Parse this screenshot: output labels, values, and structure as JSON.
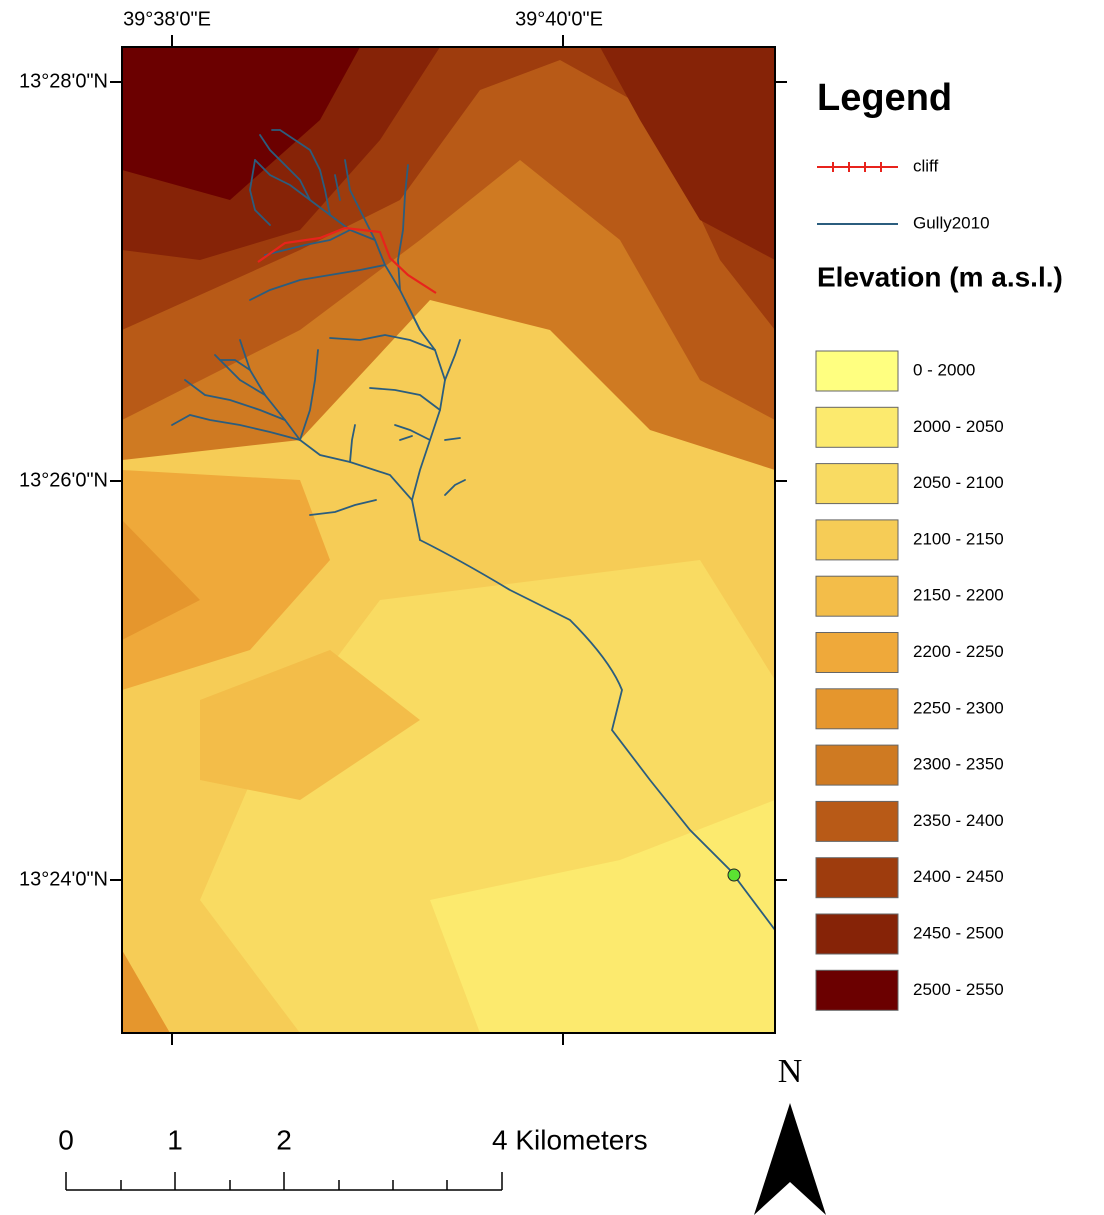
{
  "map": {
    "x_labels": [
      "39°38'0\"E",
      "39°40'0\"E"
    ],
    "y_labels": [
      "13°28'0\"N",
      "13°26'0\"N",
      "13°24'0\"N"
    ]
  },
  "legend": {
    "title": "Legend",
    "layers": [
      {
        "name": "cliff",
        "color": "#e8231c"
      },
      {
        "name": "Gully2010",
        "color": "#2b5d7e"
      }
    ],
    "elevation_title": "Elevation (m a.s.l.)",
    "classes": [
      {
        "label": "0 - 2000",
        "color": "#ffff80"
      },
      {
        "label": "2000 - 2050",
        "color": "#fcea6e"
      },
      {
        "label": "2050 - 2100",
        "color": "#f9db62"
      },
      {
        "label": "2100 - 2150",
        "color": "#f6cc56"
      },
      {
        "label": "2150 - 2200",
        "color": "#f3bd49"
      },
      {
        "label": "2200 - 2250",
        "color": "#efa93a"
      },
      {
        "label": "2250 - 2300",
        "color": "#e5962d"
      },
      {
        "label": "2300 - 2350",
        "color": "#cf7a22"
      },
      {
        "label": "2350 - 2400",
        "color": "#b85a17"
      },
      {
        "label": "2400 - 2450",
        "color": "#9e3c0d"
      },
      {
        "label": "2450 - 2500",
        "color": "#862307"
      },
      {
        "label": "2500 - 2550",
        "color": "#6b0000"
      }
    ]
  },
  "scale_bar": {
    "labels": [
      "0",
      "1",
      "2",
      "4 Kilometers"
    ]
  },
  "north": "N"
}
